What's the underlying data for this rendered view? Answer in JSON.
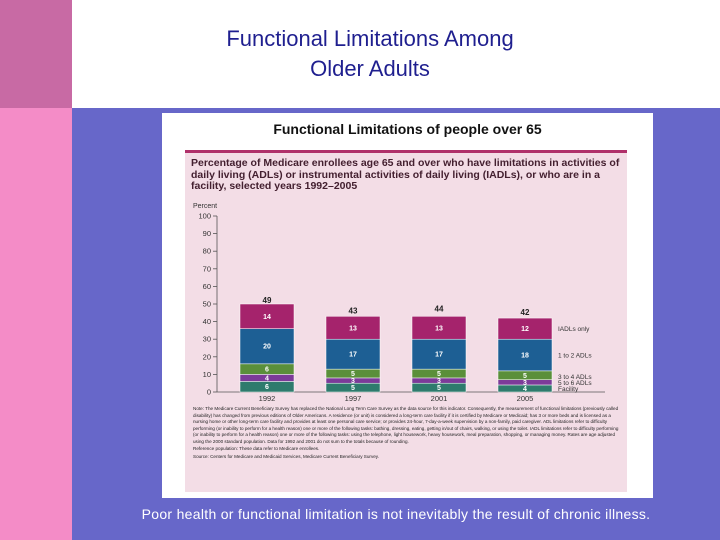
{
  "slide": {
    "title_line1": "Functional Limitations Among",
    "title_line2": "Older Adults",
    "caption": "Poor health or functional limitation is not inevitably the result of chronic illness."
  },
  "figure": {
    "heading": "Functional Limitations of people over 65",
    "subtitle": "Percentage of Medicare enrollees age 65 and over who have limitations in activities of daily living (ADLs) or instrumental activities of daily living (IADLs), or who are in a facility, selected years 1992–2005",
    "y_unit": "Percent",
    "note": "Note: The Medicare Current Beneficiary Survey has replaced the National Long Term Care Survey as the data source for this indicator. Consequently, the measurement of functional limitations (previously called disability) has changed from previous editions of Older Americans. A residence (or unit) is considered a long-term care facility if it is certified by Medicare or Medicaid; has 3 or more beds and is licensed as a nursing home or other long-term care facility and provides at least one personal care service; or provides 24-hour, 7-day-a-week supervision by a non-family, paid caregiver. ADL limitations refer to difficulty performing (or inability to perform for a health reason) one or more of the following tasks: bathing, dressing, eating, getting in/out of chairs, walking, or using the toilet. IADL limitations refer to difficulty performing (or inability to perform for a health reason) one or more of the following tasks: using the telephone, light housework, heavy housework, meal preparation, shopping, or managing money. Rates are age adjusted using the 2000 standard population. Data for 1992 and 2001 do not sum to the totals because of rounding.",
    "reference": "Reference population: These data refer to Medicare enrollees.",
    "source": "Source: Centers for Medicare and Medicaid Services, Medicare Current Beneficiary Survey."
  },
  "chart_data": {
    "type": "bar",
    "stacked": true,
    "title": "Functional Limitations of people over 65",
    "ylabel": "Percent",
    "ylim": [
      0,
      100
    ],
    "yticks": [
      0,
      10,
      20,
      30,
      40,
      50,
      60,
      70,
      80,
      90,
      100
    ],
    "categories": [
      "1992",
      "1997",
      "2001",
      "2005"
    ],
    "totals": [
      49,
      43,
      44,
      42
    ],
    "series": [
      {
        "name": "Facility",
        "values": [
          6,
          5,
          5,
          4
        ],
        "color": "#2e7b6d"
      },
      {
        "name": "5 to 6 ADLs",
        "values": [
          4,
          3,
          3,
          3
        ],
        "color": "#7c3b99"
      },
      {
        "name": "3 to 4 ADLs",
        "values": [
          6,
          5,
          5,
          5
        ],
        "color": "#5a8f3a"
      },
      {
        "name": "1 to 2 ADLs",
        "values": [
          20,
          17,
          17,
          18
        ],
        "color": "#1d5f94"
      },
      {
        "name": "IADLs only",
        "values": [
          14,
          13,
          13,
          12
        ],
        "color": "#a5236c"
      }
    ]
  }
}
